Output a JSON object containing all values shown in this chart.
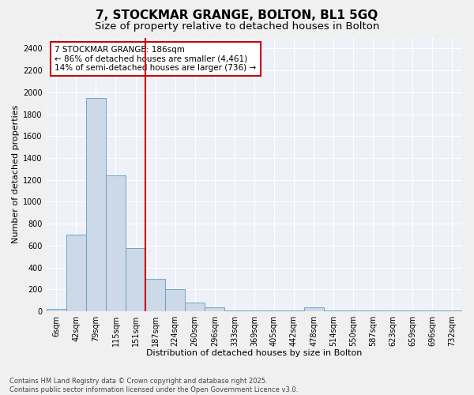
{
  "title_line1": "7, STOCKMAR GRANGE, BOLTON, BL1 5GQ",
  "title_line2": "Size of property relative to detached houses in Bolton",
  "xlabel": "Distribution of detached houses by size in Bolton",
  "ylabel": "Number of detached properties",
  "bar_color": "#ccd9e8",
  "bar_edge_color": "#6699bb",
  "background_color": "#e8eef5",
  "plot_bg_color": "#eef2f8",
  "grid_color": "#ffffff",
  "vline_color": "#cc0000",
  "vline_index": 5,
  "annotation_text": "7 STOCKMAR GRANGE: 186sqm\n← 86% of detached houses are smaller (4,461)\n14% of semi-detached houses are larger (736) →",
  "annotation_box_facecolor": "#ffffff",
  "annotation_box_edgecolor": "#cc0000",
  "bins": [
    "6sqm",
    "42sqm",
    "79sqm",
    "115sqm",
    "151sqm",
    "187sqm",
    "224sqm",
    "260sqm",
    "296sqm",
    "333sqm",
    "369sqm",
    "405sqm",
    "442sqm",
    "478sqm",
    "514sqm",
    "550sqm",
    "587sqm",
    "623sqm",
    "659sqm",
    "696sqm",
    "732sqm"
  ],
  "values": [
    20,
    700,
    1950,
    1240,
    580,
    300,
    200,
    80,
    40,
    5,
    5,
    5,
    5,
    35,
    5,
    5,
    5,
    5,
    5,
    5,
    5
  ],
  "ylim": [
    0,
    2500
  ],
  "yticks": [
    0,
    200,
    400,
    600,
    800,
    1000,
    1200,
    1400,
    1600,
    1800,
    2000,
    2200,
    2400
  ],
  "footer_text": "Contains HM Land Registry data © Crown copyright and database right 2025.\nContains public sector information licensed under the Open Government Licence v3.0.",
  "fig_bg_color": "#f0f0f0"
}
